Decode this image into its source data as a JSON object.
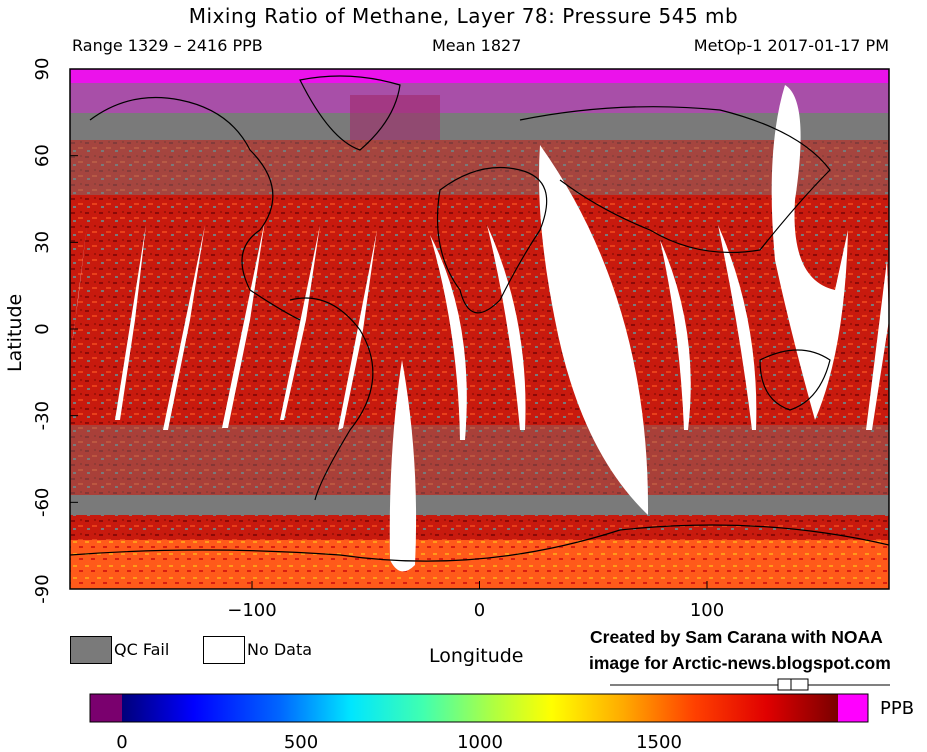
{
  "chart_data": {
    "type": "heatmap",
    "title": "Mixing Ratio of Methane, Layer 78: Pressure 545 mb",
    "range_label": "Range 1329 – 2416 PPB",
    "mean_label": "Mean 1827",
    "source_label": "MetOp-1 2017-01-17 PM",
    "xlabel": "Longitude",
    "ylabel": "Latitude",
    "xlim": [
      -180,
      180
    ],
    "ylim": [
      -90,
      90
    ],
    "x_ticks": [
      -100,
      0,
      100
    ],
    "y_ticks": [
      90,
      60,
      30,
      0,
      -30,
      -60,
      -90
    ],
    "legend": [
      {
        "label": "QC Fail",
        "color": "#7a7a7a"
      },
      {
        "label": "No Data",
        "color": "#ffffff"
      }
    ],
    "colorbar": {
      "unit": "PPB",
      "ticks": [
        0,
        500,
        1000,
        1500
      ],
      "under_color": "#7a006e",
      "over_color": "#ff00ff"
    },
    "credit_line1": "Created by Sam Carana with NOAA",
    "credit_line2": "image for Arctic-news.blogspot.com"
  }
}
